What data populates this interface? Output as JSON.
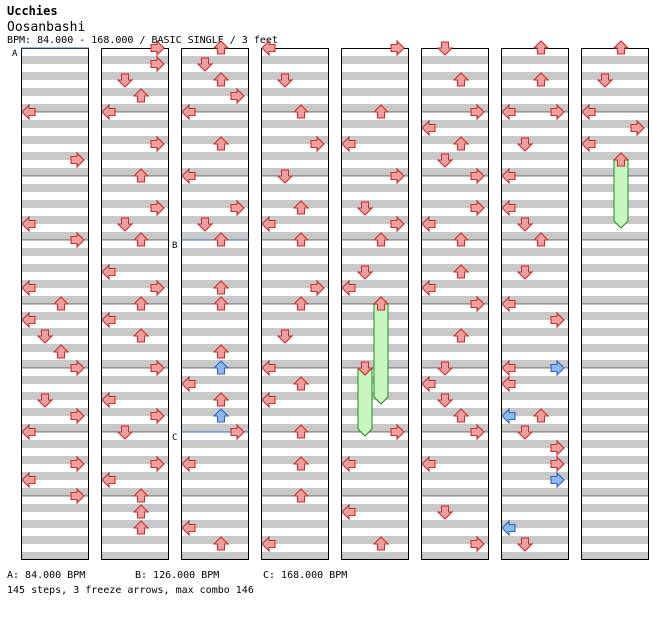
{
  "header": {
    "artist": "Ucchies",
    "title": "Oosanbashi",
    "info": "BPM: 84.000 - 168.000 / BASIC SINGLE / 3 feet"
  },
  "footer": {
    "bpm_a": "A: 84.000 BPM",
    "bpm_b": "B: 126.000 BPM",
    "bpm_c": "C: 168.000 BPM",
    "stats": "145 steps, 3 freeze arrows, max combo 146"
  },
  "chart_data": {
    "type": "step-chart",
    "columns": 8,
    "measures_per_column": 8,
    "lanes": [
      "L",
      "D",
      "U",
      "R"
    ],
    "colors": {
      "quarter": "#f0a0a0",
      "eighth": "#90b8f0",
      "freeze": "#c8f5c0",
      "grid_band": "#c8c8c8"
    },
    "bpm_changes": [
      {
        "label": "A",
        "column": 0,
        "measure": 0,
        "bpm": 84
      },
      {
        "label": "B",
        "column": 2,
        "measure": 3,
        "bpm": 126
      },
      {
        "label": "C",
        "column": 2,
        "measure": 6,
        "bpm": 168
      }
    ],
    "notes": [
      [
        0,
        1,
        0,
        "L"
      ],
      [
        0,
        1,
        6,
        "R"
      ],
      [
        0,
        2,
        6,
        "L"
      ],
      [
        0,
        3,
        0,
        "R"
      ],
      [
        0,
        3,
        6,
        "L"
      ],
      [
        0,
        4,
        0,
        "U"
      ],
      [
        0,
        4,
        2,
        "L"
      ],
      [
        0,
        4,
        4,
        "D"
      ],
      [
        0,
        4,
        6,
        "U"
      ],
      [
        0,
        5,
        0,
        "R"
      ],
      [
        0,
        5,
        4,
        "D"
      ],
      [
        0,
        5,
        6,
        "R"
      ],
      [
        0,
        6,
        0,
        "L"
      ],
      [
        0,
        6,
        4,
        "R"
      ],
      [
        0,
        6,
        6,
        "L"
      ],
      [
        0,
        7,
        0,
        "R"
      ],
      [
        1,
        0,
        0,
        "R"
      ],
      [
        1,
        0,
        2,
        "R"
      ],
      [
        1,
        0,
        4,
        "D"
      ],
      [
        1,
        0,
        6,
        "U"
      ],
      [
        1,
        1,
        0,
        "L"
      ],
      [
        1,
        1,
        4,
        "R"
      ],
      [
        1,
        2,
        0,
        "U"
      ],
      [
        1,
        2,
        4,
        "R"
      ],
      [
        1,
        2,
        6,
        "D"
      ],
      [
        1,
        3,
        0,
        "U"
      ],
      [
        1,
        3,
        4,
        "L"
      ],
      [
        1,
        3,
        6,
        "R"
      ],
      [
        1,
        4,
        0,
        "U"
      ],
      [
        1,
        4,
        2,
        "L"
      ],
      [
        1,
        4,
        4,
        "U"
      ],
      [
        1,
        5,
        0,
        "R"
      ],
      [
        1,
        5,
        4,
        "L"
      ],
      [
        1,
        5,
        6,
        "R"
      ],
      [
        1,
        6,
        0,
        "D"
      ],
      [
        1,
        6,
        4,
        "R"
      ],
      [
        1,
        6,
        6,
        "L"
      ],
      [
        1,
        7,
        0,
        "U"
      ],
      [
        1,
        7,
        2,
        "U"
      ],
      [
        1,
        7,
        4,
        "U"
      ],
      [
        2,
        0,
        0,
        "U"
      ],
      [
        2,
        0,
        2,
        "D"
      ],
      [
        2,
        0,
        4,
        "U"
      ],
      [
        2,
        0,
        6,
        "R"
      ],
      [
        2,
        1,
        0,
        "L"
      ],
      [
        2,
        1,
        4,
        "U"
      ],
      [
        2,
        2,
        0,
        "L"
      ],
      [
        2,
        2,
        4,
        "R"
      ],
      [
        2,
        2,
        6,
        "D"
      ],
      [
        2,
        3,
        0,
        "U"
      ],
      [
        2,
        3,
        6,
        "U"
      ],
      [
        2,
        4,
        0,
        "U"
      ],
      [
        2,
        4,
        6,
        "U"
      ],
      [
        2,
        5,
        0,
        "U"
      ],
      [
        2,
        5,
        2,
        "L"
      ],
      [
        2,
        5,
        4,
        "U"
      ],
      [
        2,
        6,
        0,
        "R"
      ],
      [
        2,
        6,
        4,
        "L"
      ],
      [
        2,
        7,
        4,
        "L"
      ],
      [
        2,
        7,
        6,
        "U"
      ],
      [
        3,
        0,
        0,
        "L"
      ],
      [
        3,
        0,
        4,
        "D"
      ],
      [
        3,
        1,
        0,
        "U"
      ],
      [
        3,
        1,
        4,
        "R"
      ],
      [
        3,
        2,
        0,
        "D"
      ],
      [
        3,
        2,
        4,
        "U"
      ],
      [
        3,
        2,
        6,
        "L"
      ],
      [
        3,
        3,
        0,
        "U"
      ],
      [
        3,
        3,
        6,
        "R"
      ],
      [
        3,
        4,
        0,
        "U"
      ],
      [
        3,
        4,
        4,
        "D"
      ],
      [
        3,
        5,
        0,
        "L"
      ],
      [
        3,
        5,
        2,
        "U"
      ],
      [
        3,
        5,
        4,
        "L"
      ],
      [
        3,
        6,
        0,
        "U"
      ],
      [
        3,
        6,
        4,
        "U"
      ],
      [
        3,
        7,
        0,
        "U"
      ],
      [
        3,
        7,
        6,
        "L"
      ],
      [
        4,
        0,
        0,
        "R"
      ],
      [
        4,
        1,
        0,
        "U"
      ],
      [
        4,
        1,
        4,
        "L"
      ],
      [
        4,
        2,
        0,
        "R"
      ],
      [
        4,
        2,
        4,
        "D"
      ],
      [
        4,
        2,
        6,
        "R"
      ],
      [
        4,
        3,
        0,
        "U"
      ],
      [
        4,
        3,
        4,
        "D"
      ],
      [
        4,
        3,
        6,
        "L"
      ],
      [
        4,
        4,
        0,
        "U"
      ],
      [
        4,
        5,
        0,
        "D"
      ],
      [
        4,
        6,
        0,
        "R"
      ],
      [
        4,
        6,
        4,
        "L"
      ],
      [
        4,
        7,
        2,
        "L"
      ],
      [
        4,
        7,
        6,
        "U"
      ],
      [
        5,
        0,
        0,
        "D"
      ],
      [
        5,
        0,
        4,
        "U"
      ],
      [
        5,
        1,
        0,
        "R"
      ],
      [
        5,
        1,
        2,
        "L"
      ],
      [
        5,
        1,
        4,
        "U"
      ],
      [
        5,
        1,
        6,
        "D"
      ],
      [
        5,
        2,
        0,
        "R"
      ],
      [
        5,
        2,
        4,
        "R"
      ],
      [
        5,
        2,
        6,
        "L"
      ],
      [
        5,
        3,
        0,
        "U"
      ],
      [
        5,
        3,
        4,
        "U"
      ],
      [
        5,
        3,
        6,
        "L"
      ],
      [
        5,
        4,
        0,
        "R"
      ],
      [
        5,
        4,
        4,
        "U"
      ],
      [
        5,
        5,
        0,
        "D"
      ],
      [
        5,
        5,
        2,
        "L"
      ],
      [
        5,
        5,
        4,
        "D"
      ],
      [
        5,
        5,
        6,
        "U"
      ],
      [
        5,
        6,
        0,
        "R"
      ],
      [
        5,
        6,
        4,
        "L"
      ],
      [
        5,
        7,
        2,
        "D"
      ],
      [
        5,
        7,
        6,
        "R"
      ],
      [
        6,
        0,
        0,
        "U"
      ],
      [
        6,
        0,
        4,
        "U"
      ],
      [
        6,
        1,
        0,
        "L"
      ],
      [
        6,
        1,
        0,
        "R"
      ],
      [
        6,
        1,
        4,
        "D"
      ],
      [
        6,
        2,
        0,
        "L"
      ],
      [
        6,
        2,
        4,
        "L"
      ],
      [
        6,
        2,
        6,
        "D"
      ],
      [
        6,
        3,
        0,
        "U"
      ],
      [
        6,
        3,
        4,
        "D"
      ],
      [
        6,
        4,
        0,
        "L"
      ],
      [
        6,
        4,
        2,
        "R"
      ],
      [
        6,
        5,
        0,
        "L"
      ],
      [
        6,
        5,
        2,
        "L"
      ],
      [
        6,
        5,
        6,
        "U"
      ],
      [
        6,
        6,
        0,
        "D"
      ],
      [
        6,
        6,
        2,
        "R"
      ],
      [
        6,
        6,
        4,
        "R"
      ],
      [
        6,
        7,
        4,
        "L"
      ],
      [
        6,
        7,
        6,
        "D"
      ],
      [
        7,
        0,
        0,
        "U"
      ],
      [
        7,
        0,
        4,
        "D"
      ],
      [
        7,
        1,
        0,
        "L"
      ],
      [
        7,
        1,
        2,
        "R"
      ],
      [
        7,
        1,
        4,
        "L"
      ]
    ],
    "eighth_notes": [
      [
        2,
        5,
        0,
        "U"
      ],
      [
        2,
        5,
        6,
        "U"
      ],
      [
        6,
        5,
        0,
        "R"
      ],
      [
        6,
        5,
        6,
        "L"
      ],
      [
        6,
        6,
        6,
        "R"
      ],
      [
        6,
        7,
        4,
        "L"
      ]
    ],
    "freezes": [
      [
        4,
        4,
        0,
        "U",
        4,
        5,
        4
      ],
      [
        4,
        5,
        0,
        "D",
        4,
        6,
        0
      ],
      [
        7,
        1,
        6,
        "U",
        7,
        2,
        6
      ]
    ]
  }
}
